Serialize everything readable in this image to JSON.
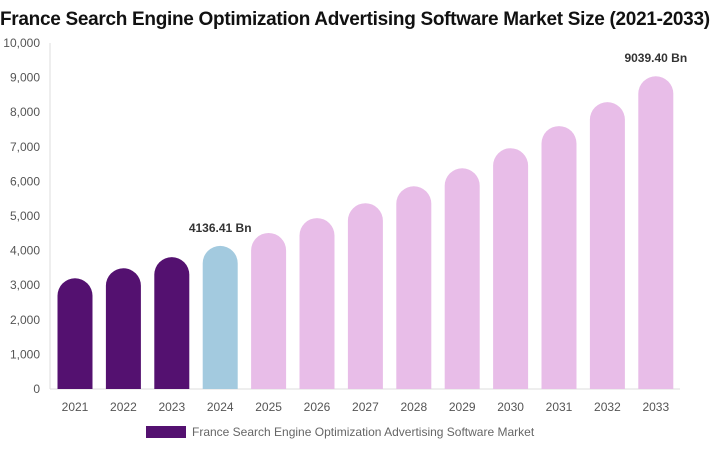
{
  "chart_data": {
    "type": "bar",
    "title": "France Search Engine Optimization Advertising Software Market Size (2021-2033)",
    "categories": [
      "2021",
      "2022",
      "2023",
      "2024",
      "2025",
      "2026",
      "2027",
      "2028",
      "2029",
      "2030",
      "2031",
      "2032",
      "2033"
    ],
    "series": [
      {
        "name": "France Search Engine Optimization Advertising Software Market",
        "values": [
          3200,
          3490,
          3810,
          4136.41,
          4510,
          4940,
          5370,
          5860,
          6380,
          6960,
          7600,
          8290,
          9039.4
        ]
      }
    ],
    "bar_colors": [
      "#541170",
      "#541170",
      "#541170",
      "#a3cadf",
      "#e8bde8",
      "#e8bde8",
      "#e8bde8",
      "#e8bde8",
      "#e8bde8",
      "#e8bde8",
      "#e8bde8",
      "#e8bde8",
      "#e8bde8"
    ],
    "data_labels": [
      {
        "index": 3,
        "text": "4136.41 Bn"
      },
      {
        "index": 12,
        "text": "9039.40 Bn"
      }
    ],
    "yticks": [
      "0",
      "1,000",
      "2,000",
      "3,000",
      "4,000",
      "5,000",
      "6,000",
      "7,000",
      "8,000",
      "9,000",
      "10,000"
    ],
    "ylim": [
      0,
      10000
    ],
    "grid": false,
    "legend_placement": "bottom",
    "legend_color": "#541170"
  }
}
